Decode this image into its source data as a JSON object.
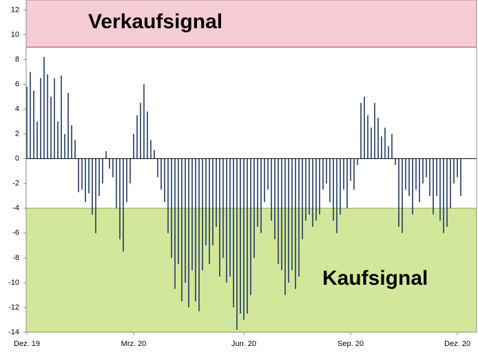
{
  "chart_data": {
    "type": "bar",
    "categories": [
      "Dez. 19",
      null,
      null,
      null,
      null,
      null,
      null,
      null,
      null,
      null,
      null,
      null,
      null,
      null,
      null,
      null,
      null,
      null,
      null,
      null,
      null,
      null,
      null,
      null,
      null,
      null,
      null,
      null,
      null,
      null,
      null,
      "Mrz. 20",
      null,
      null,
      null,
      null,
      null,
      null,
      null,
      null,
      null,
      null,
      null,
      null,
      null,
      null,
      null,
      null,
      null,
      null,
      null,
      null,
      null,
      null,
      null,
      null,
      null,
      null,
      null,
      null,
      null,
      null,
      null,
      "Jun. 20",
      null,
      null,
      null,
      null,
      null,
      null,
      null,
      null,
      null,
      null,
      null,
      null,
      null,
      null,
      null,
      null,
      null,
      null,
      null,
      null,
      null,
      null,
      null,
      null,
      null,
      null,
      null,
      null,
      null,
      null,
      "Sep. 20",
      null,
      null,
      null,
      null,
      null,
      null,
      null,
      null,
      null,
      null,
      null,
      null,
      null,
      null,
      null,
      null,
      null,
      null,
      null,
      null,
      null,
      null,
      null,
      null,
      null,
      null,
      null,
      null,
      null,
      null,
      "Dez. 20",
      null
    ],
    "values": [
      5.8,
      7,
      5.5,
      3,
      6.5,
      8.2,
      6.8,
      5,
      6.5,
      3,
      6.7,
      2,
      5.3,
      2.7,
      1.5,
      -2.7,
      -2.5,
      -3.5,
      -2.8,
      -4.5,
      -6,
      -3,
      -2,
      0.6,
      -0.8,
      -1.5,
      -4,
      -6.5,
      -7.5,
      -3.5,
      -2,
      2,
      3.5,
      4.5,
      6,
      3.8,
      1.5,
      0.7,
      -1.5,
      -2.5,
      -3.5,
      -6,
      -8,
      -10.5,
      -8.5,
      -11.5,
      -10,
      -12,
      -9,
      -11.5,
      -12.3,
      -9,
      -7,
      -8.5,
      -7,
      -5.5,
      -9.5,
      -8,
      -10,
      -9.5,
      -12,
      -13.8,
      -12.5,
      -13,
      -12.5,
      -11,
      -8,
      -5.5,
      -6,
      -3.5,
      -2.5,
      -5,
      -6.5,
      -8.5,
      -9,
      -11,
      -10,
      -9,
      -10.5,
      -9.5,
      -6.5,
      -5,
      -4.5,
      -5.5,
      -5,
      -4.5,
      -2.5,
      -2,
      -3.5,
      -5,
      -6,
      -4.5,
      -2.5,
      -4,
      -1.8,
      -2.5,
      -0.5,
      4.5,
      5,
      3.5,
      2.5,
      4.5,
      3.3,
      1.8,
      2.5,
      1,
      2,
      -0.5,
      -5.5,
      -6,
      -2.5,
      -3,
      -4.5,
      -2.5,
      -3.5,
      -2,
      -1.5,
      -3,
      -4.5,
      -3,
      -5,
      -6,
      -5.5,
      -4,
      -2,
      -1.5,
      -3
    ],
    "color": "#1f3864",
    "ylim": [
      -14,
      12.8
    ],
    "yticks": [
      -14,
      -12,
      -10,
      -8,
      -6,
      -4,
      -2,
      0,
      2,
      4,
      6,
      8,
      10,
      12
    ],
    "zones": [
      {
        "label": "Verkaufsignal",
        "from": 9,
        "to": 12.8,
        "color": "#f6cdd6",
        "edge": "#c0304a"
      },
      {
        "label": "Kaufsignal",
        "from": -14,
        "to": -4,
        "color": "#d3e79a",
        "edge": "#7fb13a"
      }
    ]
  }
}
